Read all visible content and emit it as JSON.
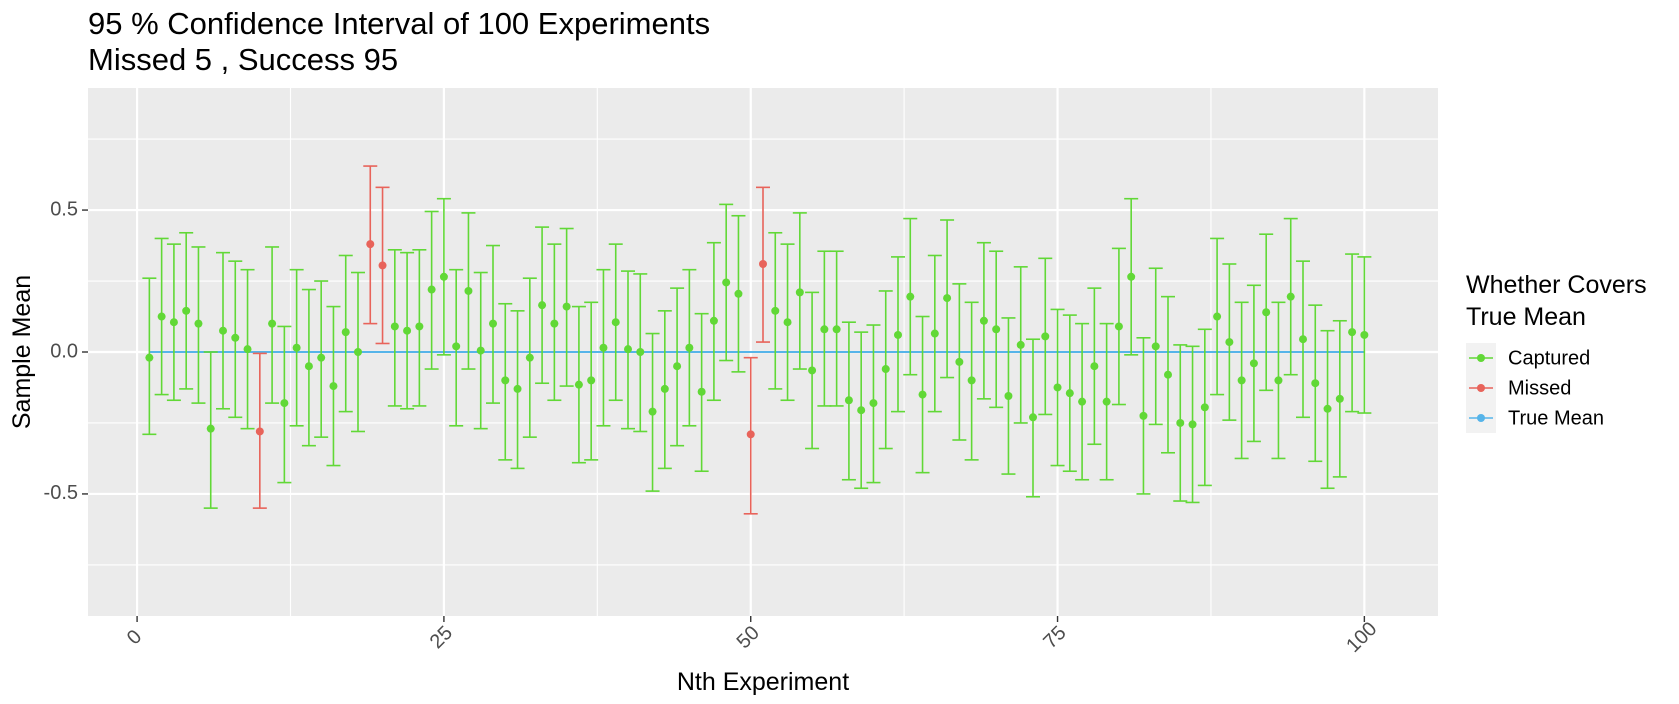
{
  "chart_data": {
    "type": "errorbar",
    "title": "95 % Confidence Interval of 100 Experiments",
    "subtitle": "Missed 5 , Success 95",
    "xlabel": "Nth Experiment",
    "ylabel": "Sample Mean",
    "xlim": [
      -4,
      106
    ],
    "ylim": [
      -0.93,
      0.93
    ],
    "xticks": [
      0,
      25,
      50,
      75,
      100
    ],
    "xtick_labels": [
      "0",
      "25",
      "50",
      "75",
      "100"
    ],
    "yticks": [
      -0.5,
      0.0,
      0.5
    ],
    "ytick_labels": [
      "-0.5",
      "0.0",
      "0.5"
    ],
    "grid": true,
    "true_mean": 0,
    "legend": {
      "title_lines": [
        "Whether Covers",
        "True Mean"
      ],
      "position": "right",
      "items": [
        {
          "label": "Captured",
          "color": "#61d836"
        },
        {
          "label": "Missed",
          "color": "#e8635a"
        },
        {
          "label": "True Mean",
          "color": "#56b4e9"
        }
      ]
    },
    "colors": {
      "captured": "#61d836",
      "missed": "#e8635a",
      "true_mean": "#56b4e9"
    },
    "experiments": [
      {
        "x": 1,
        "y": -0.02,
        "lower": -0.29,
        "upper": 0.26,
        "status": "captured"
      },
      {
        "x": 2,
        "y": 0.125,
        "lower": -0.15,
        "upper": 0.4,
        "status": "captured"
      },
      {
        "x": 3,
        "y": 0.105,
        "lower": -0.17,
        "upper": 0.38,
        "status": "captured"
      },
      {
        "x": 4,
        "y": 0.145,
        "lower": -0.13,
        "upper": 0.42,
        "status": "captured"
      },
      {
        "x": 5,
        "y": 0.1,
        "lower": -0.18,
        "upper": 0.37,
        "status": "captured"
      },
      {
        "x": 6,
        "y": -0.27,
        "lower": -0.55,
        "upper": 0.0,
        "status": "captured"
      },
      {
        "x": 7,
        "y": 0.075,
        "lower": -0.2,
        "upper": 0.35,
        "status": "captured"
      },
      {
        "x": 8,
        "y": 0.05,
        "lower": -0.23,
        "upper": 0.32,
        "status": "captured"
      },
      {
        "x": 9,
        "y": 0.01,
        "lower": -0.27,
        "upper": 0.29,
        "status": "captured"
      },
      {
        "x": 10,
        "y": -0.28,
        "lower": -0.55,
        "upper": -0.005,
        "status": "missed"
      },
      {
        "x": 11,
        "y": 0.1,
        "lower": -0.18,
        "upper": 0.37,
        "status": "captured"
      },
      {
        "x": 12,
        "y": -0.18,
        "lower": -0.46,
        "upper": 0.09,
        "status": "captured"
      },
      {
        "x": 13,
        "y": 0.015,
        "lower": -0.26,
        "upper": 0.29,
        "status": "captured"
      },
      {
        "x": 14,
        "y": -0.05,
        "lower": -0.33,
        "upper": 0.22,
        "status": "captured"
      },
      {
        "x": 15,
        "y": -0.02,
        "lower": -0.3,
        "upper": 0.25,
        "status": "captured"
      },
      {
        "x": 16,
        "y": -0.12,
        "lower": -0.4,
        "upper": 0.16,
        "status": "captured"
      },
      {
        "x": 17,
        "y": 0.07,
        "lower": -0.21,
        "upper": 0.34,
        "status": "captured"
      },
      {
        "x": 18,
        "y": 0.0,
        "lower": -0.28,
        "upper": 0.28,
        "status": "captured"
      },
      {
        "x": 19,
        "y": 0.38,
        "lower": 0.1,
        "upper": 0.655,
        "status": "missed"
      },
      {
        "x": 20,
        "y": 0.305,
        "lower": 0.03,
        "upper": 0.58,
        "status": "missed"
      },
      {
        "x": 21,
        "y": 0.09,
        "lower": -0.19,
        "upper": 0.36,
        "status": "captured"
      },
      {
        "x": 22,
        "y": 0.075,
        "lower": -0.2,
        "upper": 0.35,
        "status": "captured"
      },
      {
        "x": 23,
        "y": 0.09,
        "lower": -0.19,
        "upper": 0.36,
        "status": "captured"
      },
      {
        "x": 24,
        "y": 0.22,
        "lower": -0.06,
        "upper": 0.495,
        "status": "captured"
      },
      {
        "x": 25,
        "y": 0.265,
        "lower": -0.01,
        "upper": 0.54,
        "status": "captured"
      },
      {
        "x": 26,
        "y": 0.02,
        "lower": -0.26,
        "upper": 0.29,
        "status": "captured"
      },
      {
        "x": 27,
        "y": 0.215,
        "lower": -0.06,
        "upper": 0.49,
        "status": "captured"
      },
      {
        "x": 28,
        "y": 0.005,
        "lower": -0.27,
        "upper": 0.28,
        "status": "captured"
      },
      {
        "x": 29,
        "y": 0.1,
        "lower": -0.18,
        "upper": 0.375,
        "status": "captured"
      },
      {
        "x": 30,
        "y": -0.1,
        "lower": -0.38,
        "upper": 0.17,
        "status": "captured"
      },
      {
        "x": 31,
        "y": -0.13,
        "lower": -0.41,
        "upper": 0.145,
        "status": "captured"
      },
      {
        "x": 32,
        "y": -0.02,
        "lower": -0.3,
        "upper": 0.26,
        "status": "captured"
      },
      {
        "x": 33,
        "y": 0.165,
        "lower": -0.11,
        "upper": 0.44,
        "status": "captured"
      },
      {
        "x": 34,
        "y": 0.1,
        "lower": -0.17,
        "upper": 0.38,
        "status": "captured"
      },
      {
        "x": 35,
        "y": 0.16,
        "lower": -0.12,
        "upper": 0.435,
        "status": "captured"
      },
      {
        "x": 36,
        "y": -0.115,
        "lower": -0.39,
        "upper": 0.16,
        "status": "captured"
      },
      {
        "x": 37,
        "y": -0.1,
        "lower": -0.38,
        "upper": 0.175,
        "status": "captured"
      },
      {
        "x": 38,
        "y": 0.015,
        "lower": -0.26,
        "upper": 0.29,
        "status": "captured"
      },
      {
        "x": 39,
        "y": 0.105,
        "lower": -0.17,
        "upper": 0.38,
        "status": "captured"
      },
      {
        "x": 40,
        "y": 0.01,
        "lower": -0.27,
        "upper": 0.285,
        "status": "captured"
      },
      {
        "x": 41,
        "y": 0.0,
        "lower": -0.28,
        "upper": 0.275,
        "status": "captured"
      },
      {
        "x": 42,
        "y": -0.21,
        "lower": -0.49,
        "upper": 0.065,
        "status": "captured"
      },
      {
        "x": 43,
        "y": -0.13,
        "lower": -0.41,
        "upper": 0.145,
        "status": "captured"
      },
      {
        "x": 44,
        "y": -0.05,
        "lower": -0.33,
        "upper": 0.225,
        "status": "captured"
      },
      {
        "x": 45,
        "y": 0.015,
        "lower": -0.26,
        "upper": 0.29,
        "status": "captured"
      },
      {
        "x": 46,
        "y": -0.14,
        "lower": -0.42,
        "upper": 0.135,
        "status": "captured"
      },
      {
        "x": 47,
        "y": 0.11,
        "lower": -0.17,
        "upper": 0.385,
        "status": "captured"
      },
      {
        "x": 48,
        "y": 0.245,
        "lower": -0.03,
        "upper": 0.52,
        "status": "captured"
      },
      {
        "x": 49,
        "y": 0.205,
        "lower": -0.07,
        "upper": 0.48,
        "status": "captured"
      },
      {
        "x": 50,
        "y": -0.29,
        "lower": -0.57,
        "upper": -0.02,
        "status": "missed"
      },
      {
        "x": 51,
        "y": 0.31,
        "lower": 0.035,
        "upper": 0.58,
        "status": "missed"
      },
      {
        "x": 52,
        "y": 0.145,
        "lower": -0.13,
        "upper": 0.42,
        "status": "captured"
      },
      {
        "x": 53,
        "y": 0.105,
        "lower": -0.17,
        "upper": 0.38,
        "status": "captured"
      },
      {
        "x": 54,
        "y": 0.21,
        "lower": -0.06,
        "upper": 0.49,
        "status": "captured"
      },
      {
        "x": 55,
        "y": -0.065,
        "lower": -0.34,
        "upper": 0.21,
        "status": "captured"
      },
      {
        "x": 56,
        "y": 0.08,
        "lower": -0.19,
        "upper": 0.355,
        "status": "captured"
      },
      {
        "x": 57,
        "y": 0.08,
        "lower": -0.19,
        "upper": 0.355,
        "status": "captured"
      },
      {
        "x": 58,
        "y": -0.17,
        "lower": -0.45,
        "upper": 0.105,
        "status": "captured"
      },
      {
        "x": 59,
        "y": -0.205,
        "lower": -0.48,
        "upper": 0.07,
        "status": "captured"
      },
      {
        "x": 60,
        "y": -0.18,
        "lower": -0.46,
        "upper": 0.095,
        "status": "captured"
      },
      {
        "x": 61,
        "y": -0.06,
        "lower": -0.34,
        "upper": 0.215,
        "status": "captured"
      },
      {
        "x": 62,
        "y": 0.06,
        "lower": -0.21,
        "upper": 0.335,
        "status": "captured"
      },
      {
        "x": 63,
        "y": 0.195,
        "lower": -0.08,
        "upper": 0.47,
        "status": "captured"
      },
      {
        "x": 64,
        "y": -0.15,
        "lower": -0.425,
        "upper": 0.125,
        "status": "captured"
      },
      {
        "x": 65,
        "y": 0.065,
        "lower": -0.21,
        "upper": 0.34,
        "status": "captured"
      },
      {
        "x": 66,
        "y": 0.19,
        "lower": -0.09,
        "upper": 0.465,
        "status": "captured"
      },
      {
        "x": 67,
        "y": -0.035,
        "lower": -0.31,
        "upper": 0.24,
        "status": "captured"
      },
      {
        "x": 68,
        "y": -0.1,
        "lower": -0.38,
        "upper": 0.175,
        "status": "captured"
      },
      {
        "x": 69,
        "y": 0.11,
        "lower": -0.165,
        "upper": 0.385,
        "status": "captured"
      },
      {
        "x": 70,
        "y": 0.08,
        "lower": -0.195,
        "upper": 0.355,
        "status": "captured"
      },
      {
        "x": 71,
        "y": -0.155,
        "lower": -0.43,
        "upper": 0.12,
        "status": "captured"
      },
      {
        "x": 72,
        "y": 0.025,
        "lower": -0.25,
        "upper": 0.3,
        "status": "captured"
      },
      {
        "x": 73,
        "y": -0.23,
        "lower": -0.51,
        "upper": 0.045,
        "status": "captured"
      },
      {
        "x": 74,
        "y": 0.055,
        "lower": -0.22,
        "upper": 0.33,
        "status": "captured"
      },
      {
        "x": 75,
        "y": -0.125,
        "lower": -0.4,
        "upper": 0.15,
        "status": "captured"
      },
      {
        "x": 76,
        "y": -0.145,
        "lower": -0.42,
        "upper": 0.13,
        "status": "captured"
      },
      {
        "x": 77,
        "y": -0.175,
        "lower": -0.45,
        "upper": 0.1,
        "status": "captured"
      },
      {
        "x": 78,
        "y": -0.05,
        "lower": -0.325,
        "upper": 0.225,
        "status": "captured"
      },
      {
        "x": 79,
        "y": -0.175,
        "lower": -0.45,
        "upper": 0.1,
        "status": "captured"
      },
      {
        "x": 80,
        "y": 0.09,
        "lower": -0.185,
        "upper": 0.365,
        "status": "captured"
      },
      {
        "x": 81,
        "y": 0.265,
        "lower": -0.01,
        "upper": 0.54,
        "status": "captured"
      },
      {
        "x": 82,
        "y": -0.225,
        "lower": -0.5,
        "upper": 0.05,
        "status": "captured"
      },
      {
        "x": 83,
        "y": 0.02,
        "lower": -0.255,
        "upper": 0.295,
        "status": "captured"
      },
      {
        "x": 84,
        "y": -0.08,
        "lower": -0.355,
        "upper": 0.195,
        "status": "captured"
      },
      {
        "x": 85,
        "y": -0.25,
        "lower": -0.525,
        "upper": 0.025,
        "status": "captured"
      },
      {
        "x": 86,
        "y": -0.255,
        "lower": -0.53,
        "upper": 0.02,
        "status": "captured"
      },
      {
        "x": 87,
        "y": -0.195,
        "lower": -0.47,
        "upper": 0.08,
        "status": "captured"
      },
      {
        "x": 88,
        "y": 0.125,
        "lower": -0.15,
        "upper": 0.4,
        "status": "captured"
      },
      {
        "x": 89,
        "y": 0.035,
        "lower": -0.24,
        "upper": 0.31,
        "status": "captured"
      },
      {
        "x": 90,
        "y": -0.1,
        "lower": -0.375,
        "upper": 0.175,
        "status": "captured"
      },
      {
        "x": 91,
        "y": -0.04,
        "lower": -0.315,
        "upper": 0.235,
        "status": "captured"
      },
      {
        "x": 92,
        "y": 0.14,
        "lower": -0.135,
        "upper": 0.415,
        "status": "captured"
      },
      {
        "x": 93,
        "y": -0.1,
        "lower": -0.375,
        "upper": 0.175,
        "status": "captured"
      },
      {
        "x": 94,
        "y": 0.195,
        "lower": -0.08,
        "upper": 0.47,
        "status": "captured"
      },
      {
        "x": 95,
        "y": 0.045,
        "lower": -0.23,
        "upper": 0.32,
        "status": "captured"
      },
      {
        "x": 96,
        "y": -0.11,
        "lower": -0.385,
        "upper": 0.165,
        "status": "captured"
      },
      {
        "x": 97,
        "y": -0.2,
        "lower": -0.48,
        "upper": 0.075,
        "status": "captured"
      },
      {
        "x": 98,
        "y": -0.165,
        "lower": -0.44,
        "upper": 0.11,
        "status": "captured"
      },
      {
        "x": 99,
        "y": 0.07,
        "lower": -0.21,
        "upper": 0.345,
        "status": "captured"
      },
      {
        "x": 100,
        "y": 0.06,
        "lower": -0.215,
        "upper": 0.335,
        "status": "captured"
      }
    ]
  }
}
